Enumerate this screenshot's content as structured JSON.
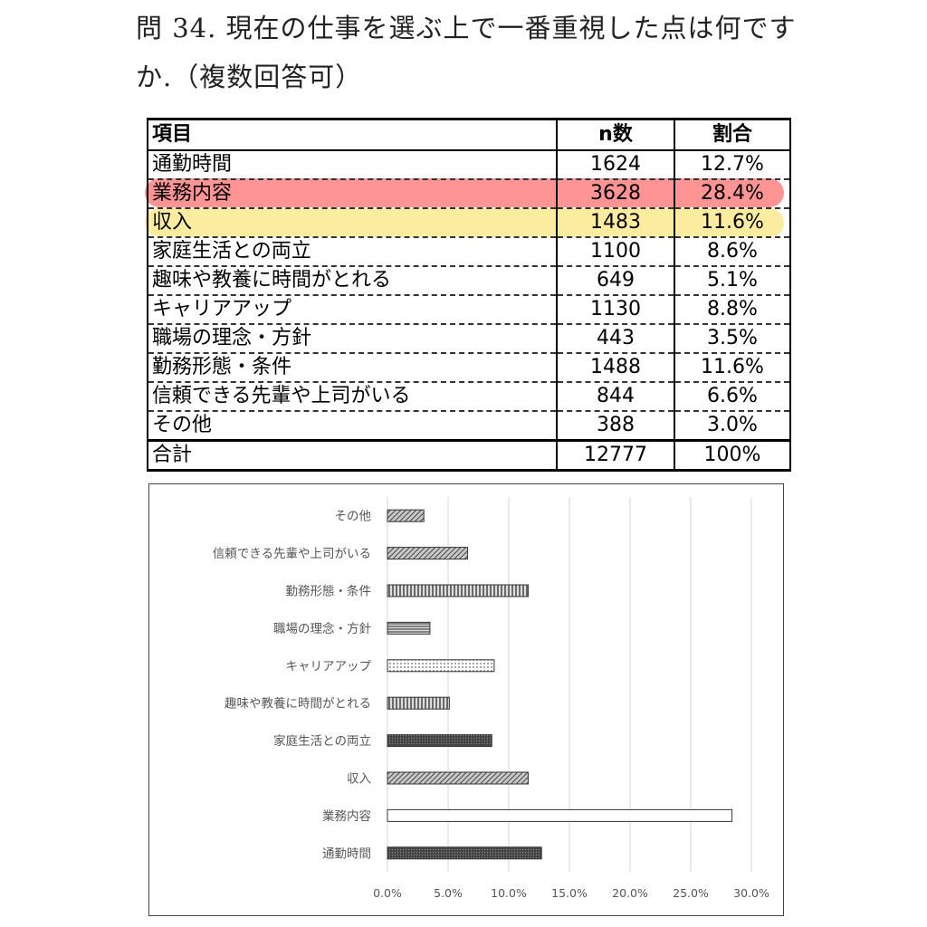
{
  "question": "問 34.  現在の仕事を選ぶ上で一番重視した点は何ですか.（複数回答可）",
  "table": {
    "headers": {
      "item": "項目",
      "n": "n数",
      "rate": "割合"
    },
    "rows": [
      {
        "item": "通勤時間",
        "n": "1624",
        "rate": "12.7%"
      },
      {
        "item": "業務内容",
        "n": "3628",
        "rate": "28.4%"
      },
      {
        "item": "収入",
        "n": "1483",
        "rate": "11.6%"
      },
      {
        "item": "家庭生活との両立",
        "n": "1100",
        "rate": "8.6%"
      },
      {
        "item": "趣味や教養に時間がとれる",
        "n": "649",
        "rate": "5.1%"
      },
      {
        "item": "キャリアアップ",
        "n": "1130",
        "rate": "8.8%"
      },
      {
        "item": "職場の理念・方針",
        "n": "443",
        "rate": "3.5%"
      },
      {
        "item": "勤務形態・条件",
        "n": "1488",
        "rate": "11.6%"
      },
      {
        "item": "信頼できる先輩や上司がいる",
        "n": "844",
        "rate": "6.6%"
      },
      {
        "item": "その他",
        "n": "388",
        "rate": "3.0%"
      }
    ],
    "total": {
      "item": "合計",
      "n": "12777",
      "rate": "100%"
    },
    "highlight_colors": {
      "red": "#ff3c3c",
      "yellow": "#fadc50"
    }
  },
  "chart_data": {
    "type": "bar",
    "orientation": "horizontal",
    "categories": [
      "その他",
      "信頼できる先輩や上司がいる",
      "勤務形態・条件",
      "職場の理念・方針",
      "キャリアアップ",
      "趣味や教養に時間がとれる",
      "家庭生活との両立",
      "収入",
      "業務内容",
      "通勤時間"
    ],
    "values": [
      3.0,
      6.6,
      11.6,
      3.5,
      8.8,
      5.1,
      8.6,
      11.6,
      28.4,
      12.7
    ],
    "fills": [
      "#777777",
      "#8a8a8a",
      "#999999",
      "#888888",
      "#eeeeee",
      "#bbbbbb",
      "#555555",
      "#999999",
      "#ffffff",
      "#222222"
    ],
    "patterns": [
      "diag",
      "diag",
      "vert",
      "horiz",
      "dots",
      "vert",
      "cross",
      "diag",
      "none",
      "cross"
    ],
    "xlim": [
      0,
      30
    ],
    "xticks": [
      "0.0%",
      "5.0%",
      "10.0%",
      "15.0%",
      "20.0%",
      "25.0%",
      "30.0%"
    ],
    "grid": true
  }
}
